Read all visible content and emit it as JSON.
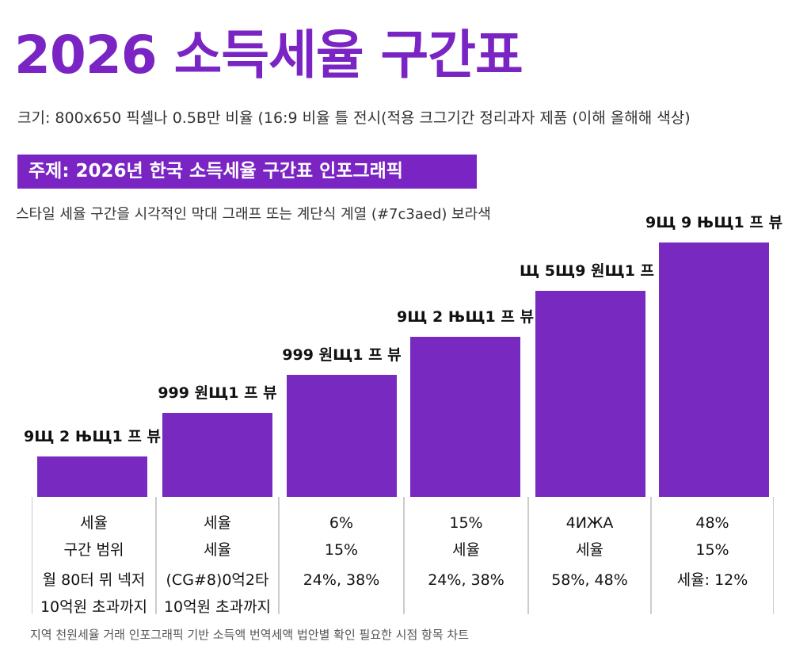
{
  "title": "2026 소득세율 구간표",
  "subtitle": "크기: 800x650 픽셀나 0.5B만 비율 (16:9 비율 틀 전시(적용 크그기간 정리과자 제품 (이해 올해해 색상)",
  "topic": "주제: 2026년 한국 소득세율 구간표 인포그래픽",
  "style_note": "스타일  세율 구간을 시각적인 막대 그래프 또는 계단식 계열  (#7c3aed) 보라색",
  "footer": "지역 천원세율 거래 인포그래픽 기반 소득액 번역세액 법안별 확인 필요한 시점 항목 차트",
  "colors": {
    "accent": "#7a24c4",
    "bar": "#7829bf"
  },
  "chart_data": {
    "type": "bar",
    "title": "",
    "xlabel": "",
    "ylabel": "",
    "grid": false,
    "legend": "none",
    "values_relative": [
      0.16,
      0.33,
      0.48,
      0.63,
      0.81,
      1.0
    ],
    "bar_labels": [
      "9Щ 2 ЊЩ1 프 뷰",
      "999 원Щ1 프 뷰",
      "999 원Щ1 프 뷰",
      "9Щ 2 ЊЩ1 프 뷰",
      "Щ 5Щ9 원Щ1 프 뷰",
      "9Щ 9 ЊЩ1 프 뷰"
    ],
    "categories": [
      [
        "세율",
        "구간 범위",
        "월 80터 뮈 넥저",
        "10억원 초과까지"
      ],
      [
        "세율",
        "세율",
        "(CG#8)0억2타",
        "10억원 초과까지"
      ],
      [
        "6%",
        "15%",
        "24%, 38%",
        ""
      ],
      [
        "15%",
        "세율",
        "24%, 38%",
        ""
      ],
      [
        "4ИЖА",
        "세율",
        "58%, 48%",
        ""
      ],
      [
        "48%",
        "15%",
        "세율: 12%",
        ""
      ]
    ]
  }
}
